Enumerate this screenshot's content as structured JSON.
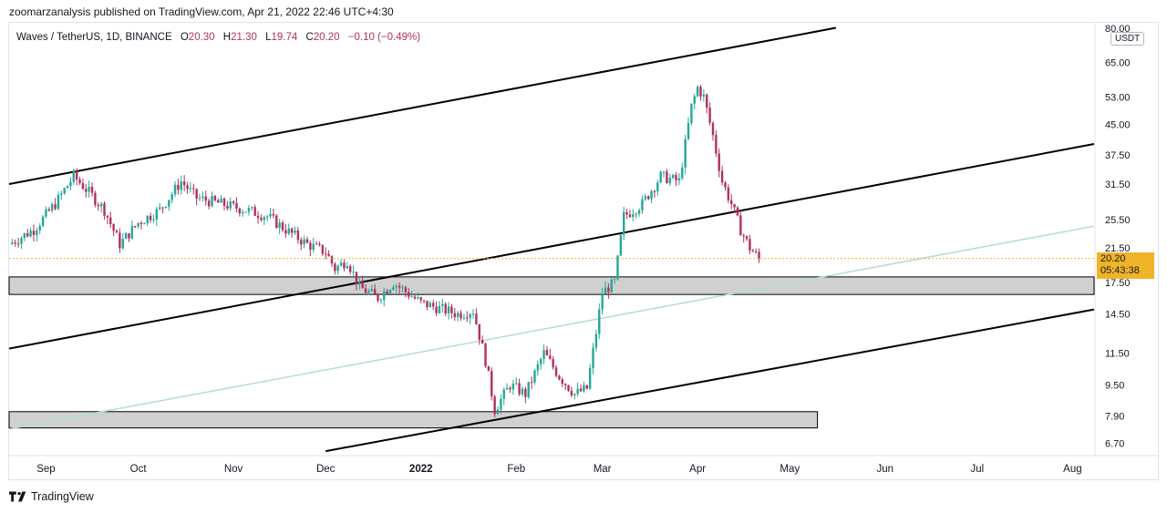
{
  "publisher": "zoomarzanalysis published on TradingView.com, Apr 21, 2022 22:46 UTC+4:30",
  "legend": {
    "symbol": "Waves / TetherUS, 1D, BINANCE",
    "open_label": "O",
    "open": "20.30",
    "high_label": "H",
    "high": "21.30",
    "low_label": "L",
    "low": "19.74",
    "close_label": "C",
    "close": "20.20",
    "change": "−0.10 (−0.49%)"
  },
  "currency": "USDT",
  "price_tag": {
    "price": "20.20",
    "countdown": "05:43:38"
  },
  "footer": {
    "brand": "TradingView",
    "logo_icon": "tradingview-logo-icon"
  },
  "colors": {
    "up": "#26a69a",
    "down": "#b03060",
    "channel": "#000000",
    "regression": "#b5ddd2",
    "zone": "#d0d0d0",
    "tag": "#f0b429"
  },
  "chart_data": {
    "type": "candlestick",
    "y_scale": "log",
    "ylim": [
      6.3,
      82
    ],
    "xlim": [
      "2021-08-20",
      "2022-08-08"
    ],
    "y_ticks": [
      "80.00",
      "65.00",
      "53.00",
      "45.00",
      "37.50",
      "31.50",
      "25.50",
      "21.50",
      "17.50",
      "14.50",
      "11.50",
      "9.50",
      "7.90",
      "6.70"
    ],
    "x_ticks": [
      {
        "label": "Sep",
        "date": "2021-09-01"
      },
      {
        "label": "Oct",
        "date": "2021-10-01"
      },
      {
        "label": "Nov",
        "date": "2021-11-01"
      },
      {
        "label": "Dec",
        "date": "2021-12-01"
      },
      {
        "label": "2022",
        "date": "2022-01-01"
      },
      {
        "label": "Feb",
        "date": "2022-02-01"
      },
      {
        "label": "Mar",
        "date": "2022-03-01"
      },
      {
        "label": "Apr",
        "date": "2022-04-01"
      },
      {
        "label": "May",
        "date": "2022-05-01"
      },
      {
        "label": "Jun",
        "date": "2022-06-01"
      },
      {
        "label": "Jul",
        "date": "2022-07-01"
      },
      {
        "label": "Aug",
        "date": "2022-08-01"
      }
    ],
    "last_price": 20.2,
    "path_points": [
      [
        "2021-08-20",
        22.0
      ],
      [
        "2021-08-28",
        24.0
      ],
      [
        "2021-09-04",
        28.0
      ],
      [
        "2021-09-10",
        33.0
      ],
      [
        "2021-09-15",
        30.0
      ],
      [
        "2021-09-20",
        27.0
      ],
      [
        "2021-09-25",
        22.0
      ],
      [
        "2021-10-01",
        25.0
      ],
      [
        "2021-10-08",
        27.0
      ],
      [
        "2021-10-15",
        32.0
      ],
      [
        "2021-10-20",
        29.0
      ],
      [
        "2021-10-28",
        28.0
      ],
      [
        "2021-11-05",
        27.0
      ],
      [
        "2021-11-12",
        26.0
      ],
      [
        "2021-11-18",
        24.0
      ],
      [
        "2021-11-25",
        22.0
      ],
      [
        "2021-12-01",
        21.0
      ],
      [
        "2021-12-04",
        19.0
      ],
      [
        "2021-12-08",
        20.0
      ],
      [
        "2021-12-12",
        17.0
      ],
      [
        "2021-12-18",
        16.0
      ],
      [
        "2021-12-23",
        17.5
      ],
      [
        "2022-01-01",
        15.5
      ],
      [
        "2022-01-07",
        15.0
      ],
      [
        "2022-01-13",
        14.5
      ],
      [
        "2022-01-18",
        14.8
      ],
      [
        "2022-01-22",
        11.0
      ],
      [
        "2022-01-25",
        8.2
      ],
      [
        "2022-01-30",
        9.5
      ],
      [
        "2022-02-04",
        9.0
      ],
      [
        "2022-02-10",
        11.5
      ],
      [
        "2022-02-15",
        10.0
      ],
      [
        "2022-02-20",
        9.0
      ],
      [
        "2022-02-24",
        9.3
      ],
      [
        "2022-02-27",
        13.0
      ],
      [
        "2022-03-01",
        16.5
      ],
      [
        "2022-03-05",
        17.5
      ],
      [
        "2022-03-08",
        26.0
      ],
      [
        "2022-03-14",
        28.0
      ],
      [
        "2022-03-20",
        33.0
      ],
      [
        "2022-03-26",
        32.0
      ],
      [
        "2022-03-30",
        50.0
      ],
      [
        "2022-04-01",
        56.0
      ],
      [
        "2022-04-03",
        53.0
      ],
      [
        "2022-04-06",
        42.0
      ],
      [
        "2022-04-09",
        32.0
      ],
      [
        "2022-04-12",
        28.0
      ],
      [
        "2022-04-15",
        24.0
      ],
      [
        "2022-04-18",
        21.5
      ],
      [
        "2022-04-21",
        20.2
      ]
    ],
    "channel_lines": [
      {
        "name": "upper",
        "from": [
          "2021-08-20",
          31.5
        ],
        "to": [
          "2022-05-16",
          80.0
        ]
      },
      {
        "name": "middle",
        "from": [
          "2021-08-20",
          11.8
        ],
        "to": [
          "2022-08-08",
          40.0
        ]
      },
      {
        "name": "lower",
        "from": [
          "2021-12-01",
          6.4
        ],
        "to": [
          "2022-08-08",
          14.9
        ]
      },
      {
        "name": "regression",
        "from": [
          "2021-08-20",
          7.3
        ],
        "to": [
          "2022-08-08",
          24.5
        ]
      }
    ],
    "zones": [
      {
        "from": "2021-08-20",
        "to": "2022-08-08",
        "low": 16.3,
        "high": 18.1
      },
      {
        "from": "2021-08-20",
        "to": "2022-05-10",
        "low": 7.35,
        "high": 8.1
      }
    ]
  }
}
